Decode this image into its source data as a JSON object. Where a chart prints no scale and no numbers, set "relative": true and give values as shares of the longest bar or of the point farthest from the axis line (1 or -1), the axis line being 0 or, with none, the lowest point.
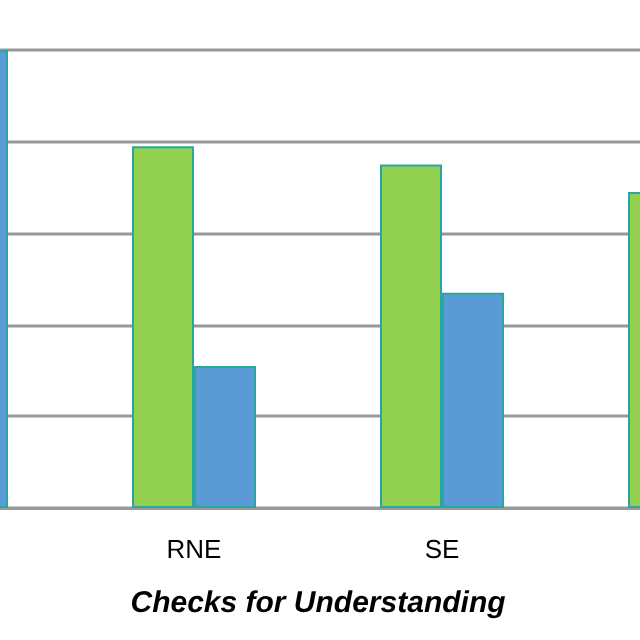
{
  "chart_data": {
    "type": "bar",
    "xlabel": "Checks for Understanding",
    "categories": [
      null,
      "RNE",
      "SE",
      null
    ],
    "series": [
      {
        "color": "#92d050",
        "values": [
          null,
          0.79,
          0.75,
          0.69
        ]
      },
      {
        "color": "#5b9bd5",
        "values": [
          1,
          0.31,
          0.47,
          null
        ]
      }
    ],
    "relative": true,
    "grid": "y"
  }
}
